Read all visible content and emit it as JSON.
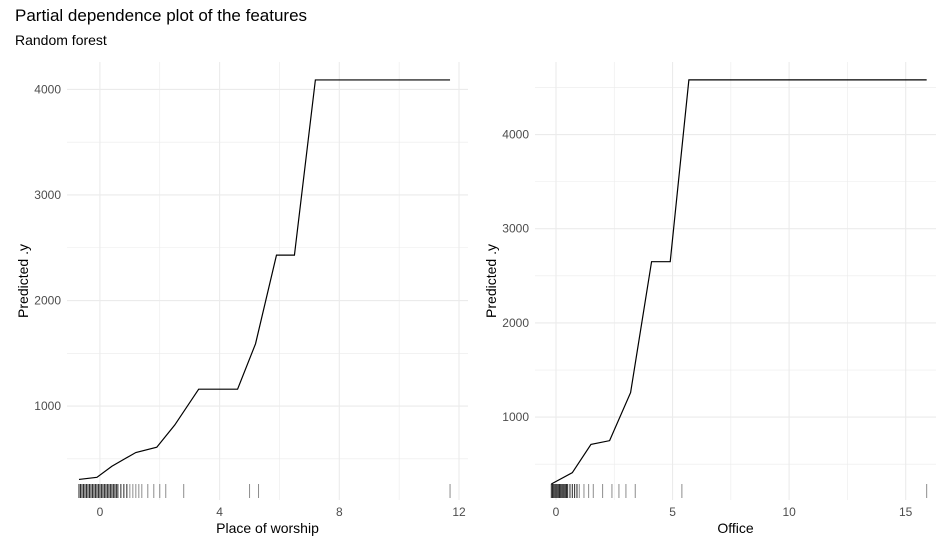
{
  "header": {
    "title": "Partial dependence plot of the features",
    "subtitle": "Random forest"
  },
  "colors": {
    "line": "#000000",
    "grid": "#ebebeb",
    "tick_text": "#4d4d4d"
  },
  "chart_data": [
    {
      "type": "line",
      "xlabel": "Place of worship",
      "ylabel": "Predicted .y",
      "xlim": [
        -1.1,
        12.3
      ],
      "ylim": [
        110,
        4260
      ],
      "xticks": [
        0,
        4,
        8,
        12
      ],
      "yticks": [
        1000,
        2000,
        3000,
        4000
      ],
      "grid": true,
      "x": [
        -0.7,
        -0.1,
        0.4,
        1.2,
        1.9,
        2.5,
        3.3,
        4.0,
        4.6,
        5.2,
        5.9,
        6.5,
        7.2,
        11.7
      ],
      "y": [
        305,
        325,
        430,
        560,
        610,
        820,
        1160,
        1160,
        1160,
        1590,
        2430,
        2430,
        4090,
        4090
      ],
      "rug": [
        -0.7,
        -0.65,
        -0.6,
        -0.55,
        -0.5,
        -0.45,
        -0.4,
        -0.35,
        -0.3,
        -0.25,
        -0.2,
        -0.15,
        -0.1,
        -0.05,
        0.0,
        0.05,
        0.1,
        0.15,
        0.2,
        0.25,
        0.3,
        0.35,
        0.4,
        0.45,
        0.5,
        0.55,
        0.6,
        0.7,
        0.8,
        0.9,
        1.0,
        1.1,
        1.2,
        1.3,
        1.4,
        1.6,
        1.8,
        2.0,
        2.2,
        2.8,
        5.0,
        5.3,
        11.7
      ]
    },
    {
      "type": "line",
      "xlabel": "Office",
      "ylabel": "Predicted .y",
      "xlim": [
        -0.9,
        16.3
      ],
      "ylim": [
        120,
        4770
      ],
      "xticks": [
        0,
        5,
        10,
        15
      ],
      "yticks": [
        1000,
        2000,
        3000,
        4000
      ],
      "grid": true,
      "x": [
        -0.2,
        0.7,
        1.5,
        2.3,
        3.2,
        4.1,
        4.9,
        5.7,
        15.9
      ],
      "y": [
        290,
        410,
        710,
        750,
        1260,
        2650,
        2650,
        4580,
        4580
      ],
      "rug": [
        -0.2,
        -0.15,
        -0.1,
        -0.05,
        0.0,
        0.05,
        0.1,
        0.15,
        0.2,
        0.25,
        0.3,
        0.35,
        0.4,
        0.45,
        0.5,
        0.6,
        0.7,
        0.8,
        0.9,
        1.0,
        1.2,
        1.4,
        1.6,
        2.0,
        2.4,
        2.7,
        3.0,
        3.4,
        5.4,
        15.9
      ]
    }
  ]
}
